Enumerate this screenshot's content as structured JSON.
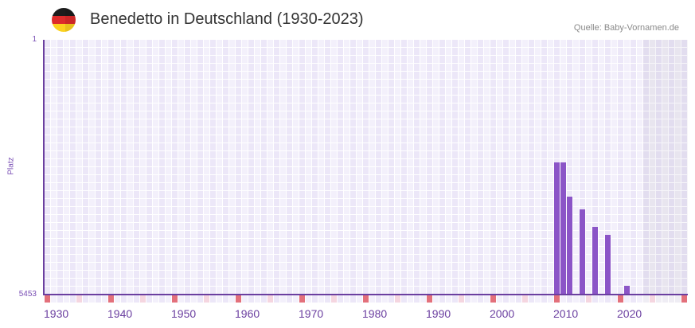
{
  "header": {
    "title": "Benedetto in Deutschland (1930-2023)",
    "source": "Quelle: Baby-Vornamen.de",
    "flag_icon": "germany-flag-icon"
  },
  "y_axis": {
    "title": "Platz",
    "top_label": "1",
    "bottom_label": "5453"
  },
  "colors": {
    "bar": "#8b55c7",
    "axis": "#6b3fa0",
    "decade_marker": "#e3707b",
    "half_decade_marker": "#f5d6e0",
    "marker_dark": "#ece7f8",
    "marker_light": "#f3f0fb",
    "future_marker": "#efedf4"
  },
  "chart_data": {
    "type": "bar",
    "title": "Benedetto in Deutschland (1930-2023)",
    "subtitle": "Quelle: Baby-Vornamen.de",
    "xlabel": "",
    "ylabel": "Platz",
    "x": [
      2010,
      2011,
      2012,
      2014,
      2016,
      2018,
      2021
    ],
    "values": [
      2625,
      2625,
      3357,
      3630,
      4005,
      4175,
      5266
    ],
    "value_meaning": "rank (Platz), lower is more popular; axis inverted",
    "ylim": [
      5453,
      1
    ],
    "y_tick_labels": [
      "1",
      "5453"
    ],
    "xlim": [
      1930,
      2030
    ],
    "x_tick_values": [
      1930,
      1940,
      1950,
      1960,
      1970,
      1980,
      1990,
      2000,
      2010,
      2020
    ],
    "x_tick_labels": [
      "1930",
      "1940",
      "1950",
      "1960",
      "1970",
      "1980",
      "1990",
      "2000",
      "2010",
      "2020"
    ],
    "shaded_future_from": 2024,
    "grid": true,
    "legend": null
  }
}
